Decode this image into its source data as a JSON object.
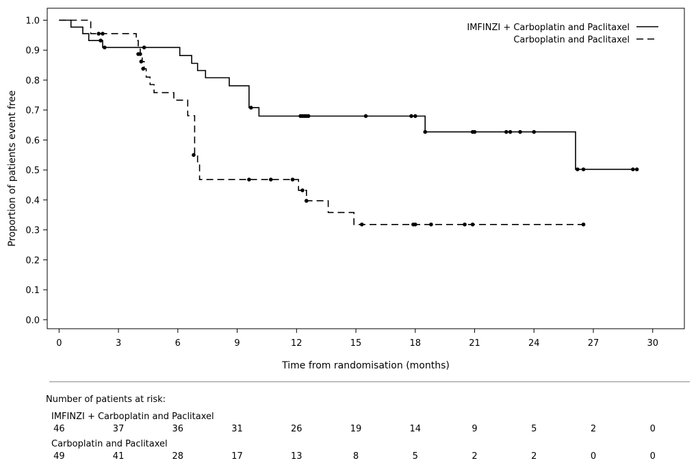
{
  "chart_data": {
    "type": "line",
    "xlabel": "Time from randomisation (months)",
    "ylabel": "Proportion of patients event free",
    "xlim": [
      -0.6,
      31.6
    ],
    "ylim": [
      -0.03,
      1.04
    ],
    "x_ticks": [
      0,
      3,
      6,
      9,
      12,
      15,
      18,
      21,
      24,
      27,
      30
    ],
    "x_tick_labels": [
      "0",
      "3",
      "6",
      "9",
      "12",
      "15",
      "18",
      "21",
      "24",
      "27",
      "30"
    ],
    "y_ticks": [
      0.0,
      0.1,
      0.2,
      0.3,
      0.4,
      0.5,
      0.6,
      0.7,
      0.8,
      0.9,
      1.0
    ],
    "y_tick_labels": [
      "0.0",
      "0.1",
      "0.2",
      "0.3",
      "0.4",
      "0.5",
      "0.6",
      "0.7",
      "0.8",
      "0.9",
      "1.0"
    ],
    "grid": false,
    "legend_position": "top-right",
    "series": [
      {
        "name": "IMFINZI + Carboplatin and Paclitaxel",
        "line_style": "solid",
        "color": "#000000",
        "steps": [
          [
            0,
            1.0
          ],
          [
            0.6,
            0.977
          ],
          [
            1.2,
            0.955
          ],
          [
            1.5,
            0.932
          ],
          [
            2.0,
            0.932
          ],
          [
            2.2,
            0.909
          ],
          [
            6.0,
            0.909
          ],
          [
            6.1,
            0.882
          ],
          [
            6.7,
            0.856
          ],
          [
            7.0,
            0.832
          ],
          [
            7.4,
            0.808
          ],
          [
            8.6,
            0.781
          ],
          [
            9.6,
            0.708
          ],
          [
            10.1,
            0.68
          ],
          [
            18.4,
            0.68
          ],
          [
            18.5,
            0.627
          ],
          [
            26.0,
            0.627
          ],
          [
            26.1,
            0.502
          ],
          [
            29.2,
            0.502
          ]
        ],
        "censored": [
          [
            2.1,
            0.932
          ],
          [
            2.3,
            0.909
          ],
          [
            4.3,
            0.909
          ],
          [
            9.7,
            0.708
          ],
          [
            12.2,
            0.68
          ],
          [
            12.3,
            0.68
          ],
          [
            12.4,
            0.68
          ],
          [
            12.5,
            0.68
          ],
          [
            12.6,
            0.68
          ],
          [
            15.5,
            0.68
          ],
          [
            17.8,
            0.68
          ],
          [
            18.0,
            0.68
          ],
          [
            18.5,
            0.627
          ],
          [
            20.9,
            0.627
          ],
          [
            21.0,
            0.627
          ],
          [
            22.6,
            0.627
          ],
          [
            22.8,
            0.627
          ],
          [
            23.3,
            0.627
          ],
          [
            24.0,
            0.627
          ],
          [
            26.2,
            0.502
          ],
          [
            26.5,
            0.502
          ],
          [
            29.0,
            0.502
          ],
          [
            29.2,
            0.502
          ]
        ]
      },
      {
        "name": "Carboplatin and Paclitaxel",
        "line_style": "dashed",
        "color": "#000000",
        "steps": [
          [
            0,
            1.0
          ],
          [
            1.5,
            1.0
          ],
          [
            1.6,
            0.955
          ],
          [
            3.8,
            0.955
          ],
          [
            3.9,
            0.932
          ],
          [
            4.0,
            0.909
          ],
          [
            4.1,
            0.887
          ],
          [
            4.2,
            0.862
          ],
          [
            4.3,
            0.838
          ],
          [
            4.4,
            0.81
          ],
          [
            4.6,
            0.785
          ],
          [
            4.8,
            0.758
          ],
          [
            5.7,
            0.758
          ],
          [
            5.8,
            0.733
          ],
          [
            6.4,
            0.733
          ],
          [
            6.5,
            0.681
          ],
          [
            6.8,
            0.681
          ],
          [
            6.85,
            0.55
          ],
          [
            7.0,
            0.52
          ],
          [
            7.1,
            0.468
          ],
          [
            12.0,
            0.468
          ],
          [
            12.1,
            0.432
          ],
          [
            12.4,
            0.432
          ],
          [
            12.5,
            0.397
          ],
          [
            13.5,
            0.397
          ],
          [
            13.6,
            0.358
          ],
          [
            14.8,
            0.358
          ],
          [
            14.9,
            0.318
          ],
          [
            26.5,
            0.318
          ]
        ],
        "censored": [
          [
            2.0,
            0.955
          ],
          [
            2.2,
            0.955
          ],
          [
            4.0,
            0.887
          ],
          [
            4.1,
            0.887
          ],
          [
            4.15,
            0.862
          ],
          [
            4.25,
            0.838
          ],
          [
            6.8,
            0.55
          ],
          [
            9.6,
            0.468
          ],
          [
            10.7,
            0.468
          ],
          [
            11.8,
            0.468
          ],
          [
            12.3,
            0.432
          ],
          [
            12.5,
            0.397
          ],
          [
            15.3,
            0.318
          ],
          [
            17.9,
            0.318
          ],
          [
            18.0,
            0.318
          ],
          [
            18.8,
            0.318
          ],
          [
            20.5,
            0.318
          ],
          [
            20.9,
            0.318
          ],
          [
            26.5,
            0.318
          ]
        ]
      }
    ],
    "at_risk": {
      "title": "Number of patients at risk:",
      "times": [
        0,
        3,
        6,
        9,
        12,
        15,
        18,
        21,
        24,
        27,
        30
      ],
      "groups": [
        {
          "label": "IMFINZI + Carboplatin and Paclitaxel",
          "counts": [
            46,
            37,
            36,
            31,
            26,
            19,
            14,
            9,
            5,
            2,
            0
          ]
        },
        {
          "label": "Carboplatin and Paclitaxel",
          "counts": [
            49,
            41,
            28,
            17,
            13,
            8,
            5,
            2,
            2,
            0,
            0
          ]
        }
      ]
    }
  }
}
